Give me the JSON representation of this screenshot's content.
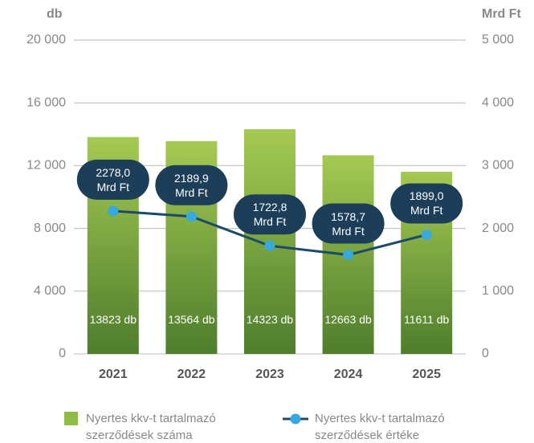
{
  "chart_data": {
    "type": "bar-line",
    "categories": [
      "2021",
      "2022",
      "2023",
      "2024",
      "2025"
    ],
    "y_label": "db",
    "y2_label": "Mrd Ft",
    "ylim": [
      0,
      20000
    ],
    "yticks": [
      0,
      {
        "value": 4000,
        "label": "4 000"
      },
      {
        "value": 8000,
        "label": "8 000"
      },
      {
        "value": 12000,
        "label": "12 000"
      },
      {
        "value": 16000,
        "label": "16 000"
      },
      {
        "value": 20000,
        "label": "20 000"
      }
    ],
    "y2lim": [
      0,
      5000
    ],
    "y2ticks": [
      0,
      {
        "value": 1000,
        "label": "1 000"
      },
      {
        "value": 2000,
        "label": "2 000"
      },
      {
        "value": 3000,
        "label": "3 000"
      },
      {
        "value": 4000,
        "label": "4 000"
      },
      {
        "value": 5000,
        "label": "5 000"
      }
    ],
    "grid": true,
    "series": [
      {
        "name": "Nyertes kkv-t tartalmazó szerződések száma",
        "type": "bar",
        "color": "#8fbc44",
        "gradient": [
          "#a5ca52",
          "#4e7d2c"
        ],
        "values": [
          13823,
          13564,
          14323,
          12663,
          11611
        ],
        "value_labels": [
          "13823 db",
          "13564 db",
          "14323 db",
          "12663 db",
          "11611 db"
        ]
      },
      {
        "name": "Nyertes kkv-t tartalmazó szerződések értéke",
        "type": "line",
        "axis": "y2",
        "color": "#1b4a6b",
        "marker_color": "#36a9de",
        "label_color": "#1c3e58",
        "values": [
          2278.0,
          2189.9,
          1722.8,
          1578.7,
          1899.0
        ],
        "value_labels": [
          "2278,0 Mrd Ft",
          "2189,9 Mrd Ft",
          "1722,8 Mrd Ft",
          "1578,7 Mrd Ft",
          "1899,0 Mrd Ft"
        ]
      }
    ],
    "legend": "bottom"
  }
}
